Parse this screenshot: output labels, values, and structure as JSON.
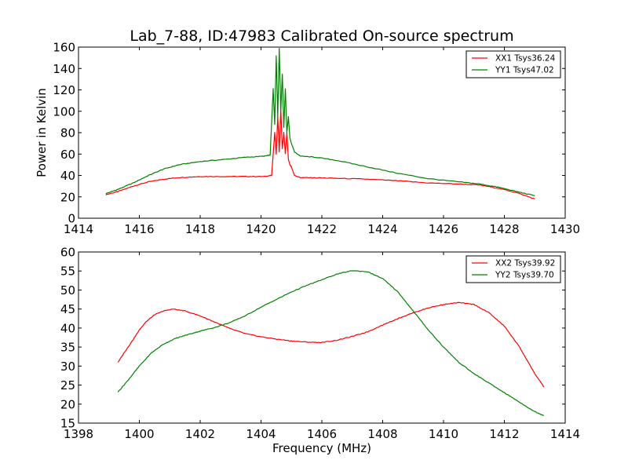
{
  "figure": {
    "title": "Lab_7-88, ID:47983 Calibrated On-source spectrum",
    "background": "#ffffff"
  },
  "chart_data": [
    {
      "type": "line",
      "title": "Lab_7-88, ID:47983 Calibrated On-source spectrum",
      "xlabel": "",
      "ylabel": "Power in Kelvin",
      "xlim": [
        1414,
        1430
      ],
      "ylim": [
        0,
        160
      ],
      "xticks": [
        1414,
        1416,
        1418,
        1420,
        1422,
        1424,
        1426,
        1428,
        1430
      ],
      "yticks": [
        0,
        20,
        40,
        60,
        80,
        100,
        120,
        140,
        160
      ],
      "grid": false,
      "legend_position": "top-right",
      "series": [
        {
          "name": "XX1 Tsys36.24",
          "color": "#ff0000",
          "x": [
            1414.9,
            1415.3,
            1415.8,
            1416.3,
            1416.8,
            1417.3,
            1418.0,
            1418.8,
            1419.5,
            1420.1,
            1420.35,
            1420.45,
            1420.5,
            1420.55,
            1420.6,
            1420.65,
            1420.7,
            1420.75,
            1420.8,
            1420.85,
            1420.9,
            1420.95,
            1421.0,
            1421.1,
            1421.3,
            1421.8,
            1422.5,
            1423.5,
            1424.5,
            1425.5,
            1426.5,
            1427.2,
            1427.8,
            1428.4,
            1429.0
          ],
          "y": [
            22,
            25,
            30,
            34,
            36.5,
            38,
            39,
            39,
            39,
            39,
            40,
            80,
            60,
            95,
            62,
            102,
            65,
            80,
            60,
            80,
            55,
            50,
            48,
            40,
            38,
            37.8,
            37.3,
            36.5,
            35,
            33,
            32,
            31,
            28,
            24,
            18
          ]
        },
        {
          "name": "YY1 Tsys47.02",
          "color": "#008000",
          "x": [
            1414.9,
            1415.3,
            1415.8,
            1416.3,
            1416.8,
            1417.3,
            1418.0,
            1418.8,
            1419.5,
            1420.1,
            1420.3,
            1420.4,
            1420.45,
            1420.5,
            1420.55,
            1420.6,
            1420.65,
            1420.7,
            1420.75,
            1420.8,
            1420.85,
            1420.9,
            1420.95,
            1421.0,
            1421.1,
            1421.3,
            1421.8,
            1422.5,
            1423.5,
            1424.5,
            1425.5,
            1426.5,
            1427.2,
            1427.8,
            1428.4,
            1429.0
          ],
          "y": [
            23,
            27,
            33,
            40,
            46,
            50,
            53,
            55,
            57,
            58,
            59,
            121,
            88,
            152,
            95,
            159,
            100,
            135,
            85,
            121,
            80,
            95,
            75,
            70,
            62,
            58,
            57,
            54,
            48,
            42,
            37,
            34,
            32,
            29,
            25,
            21
          ]
        }
      ]
    },
    {
      "type": "line",
      "title": "",
      "xlabel": "Frequency (MHz)",
      "ylabel": "",
      "xlim": [
        1398,
        1414
      ],
      "ylim": [
        15,
        60
      ],
      "xticks": [
        1398,
        1400,
        1402,
        1404,
        1406,
        1408,
        1410,
        1412,
        1414
      ],
      "yticks": [
        15,
        20,
        25,
        30,
        35,
        40,
        45,
        50,
        55,
        60
      ],
      "grid": false,
      "legend_position": "top-right",
      "series": [
        {
          "name": "XX2 Tsys39.92",
          "color": "#ff0000",
          "x": [
            1399.3,
            1399.5,
            1399.8,
            1400.0,
            1400.2,
            1400.5,
            1400.8,
            1401.1,
            1401.5,
            1402.0,
            1402.5,
            1403.0,
            1403.5,
            1404.0,
            1404.5,
            1405.0,
            1405.5,
            1406.0,
            1406.5,
            1407.0,
            1407.5,
            1408.0,
            1408.5,
            1409.0,
            1409.5,
            1410.0,
            1410.5,
            1411.0,
            1411.5,
            1412.0,
            1412.5,
            1413.0,
            1413.3
          ],
          "y": [
            31,
            33.5,
            37,
            39.5,
            41.5,
            43.5,
            44.5,
            45,
            44.5,
            43.2,
            41.5,
            39.8,
            38.5,
            37.7,
            37.1,
            36.6,
            36.3,
            36.2,
            36.8,
            37.8,
            39,
            40.8,
            42.5,
            44,
            45.3,
            46.2,
            46.7,
            46.2,
            44,
            40.5,
            35,
            28,
            24.5
          ]
        },
        {
          "name": "YY2 Tsys39.70",
          "color": "#008000",
          "x": [
            1399.3,
            1399.6,
            1400.0,
            1400.4,
            1400.8,
            1401.2,
            1401.6,
            1402.0,
            1402.5,
            1403.0,
            1403.5,
            1404.0,
            1404.5,
            1405.0,
            1405.5,
            1406.0,
            1406.5,
            1407.0,
            1407.5,
            1408.0,
            1408.5,
            1409.0,
            1409.5,
            1410.0,
            1410.5,
            1411.0,
            1411.5,
            1412.0,
            1412.5,
            1413.0,
            1413.3
          ],
          "y": [
            23.2,
            26,
            30,
            33.5,
            35.8,
            37.3,
            38.3,
            39.2,
            40.2,
            41.5,
            43.3,
            45.5,
            47.5,
            49.5,
            51.2,
            52.7,
            54.2,
            55.1,
            54.8,
            53,
            49.5,
            44.5,
            39.5,
            35,
            31,
            28,
            25.5,
            23,
            20.5,
            18,
            17
          ]
        }
      ]
    }
  ]
}
